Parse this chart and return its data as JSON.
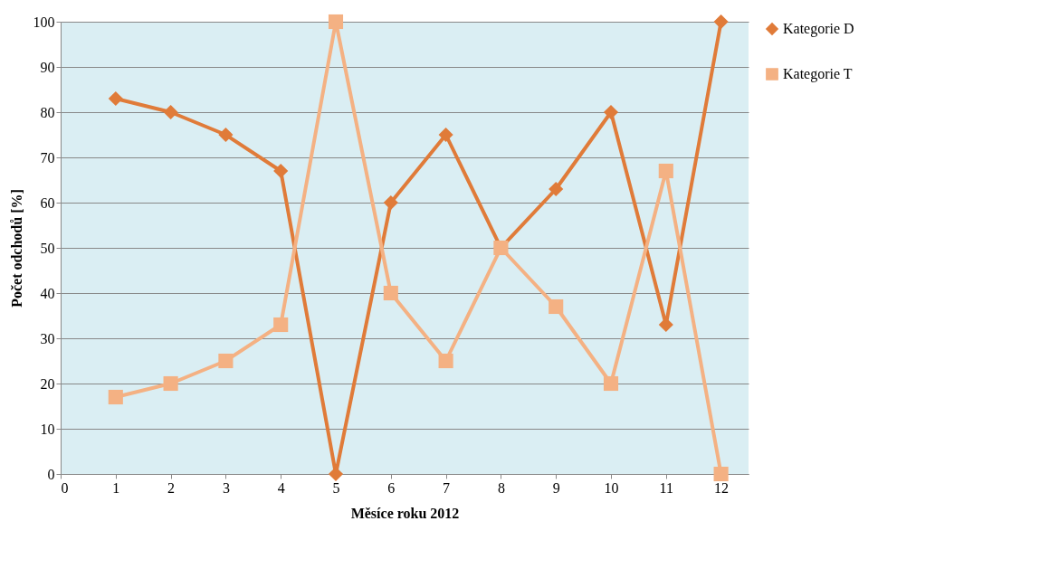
{
  "chart_data": {
    "type": "line",
    "xlabel": "Měsíce roku 2012",
    "ylabel": "Počet odchodů [%]",
    "x": [
      1,
      2,
      3,
      4,
      5,
      6,
      7,
      8,
      9,
      10,
      11,
      12
    ],
    "series": [
      {
        "name": "Kategorie D",
        "color": "#e07b39",
        "marker": "diamond",
        "values": [
          83,
          80,
          75,
          67,
          0,
          60,
          75,
          50,
          63,
          80,
          33,
          100
        ]
      },
      {
        "name": "Kategorie T",
        "color": "#f4b183",
        "marker": "square",
        "values": [
          17,
          20,
          25,
          33,
          100,
          40,
          25,
          50,
          37,
          20,
          67,
          0
        ]
      }
    ],
    "xlim": [
      0,
      12.5
    ],
    "xticks": [
      0,
      1,
      2,
      3,
      4,
      5,
      6,
      7,
      8,
      9,
      10,
      11,
      12
    ],
    "ylim": [
      0,
      100
    ],
    "yticks": [
      0,
      10,
      20,
      30,
      40,
      50,
      60,
      70,
      80,
      90,
      100
    ],
    "grid": "y",
    "legend": "right",
    "line_style": "solid"
  }
}
